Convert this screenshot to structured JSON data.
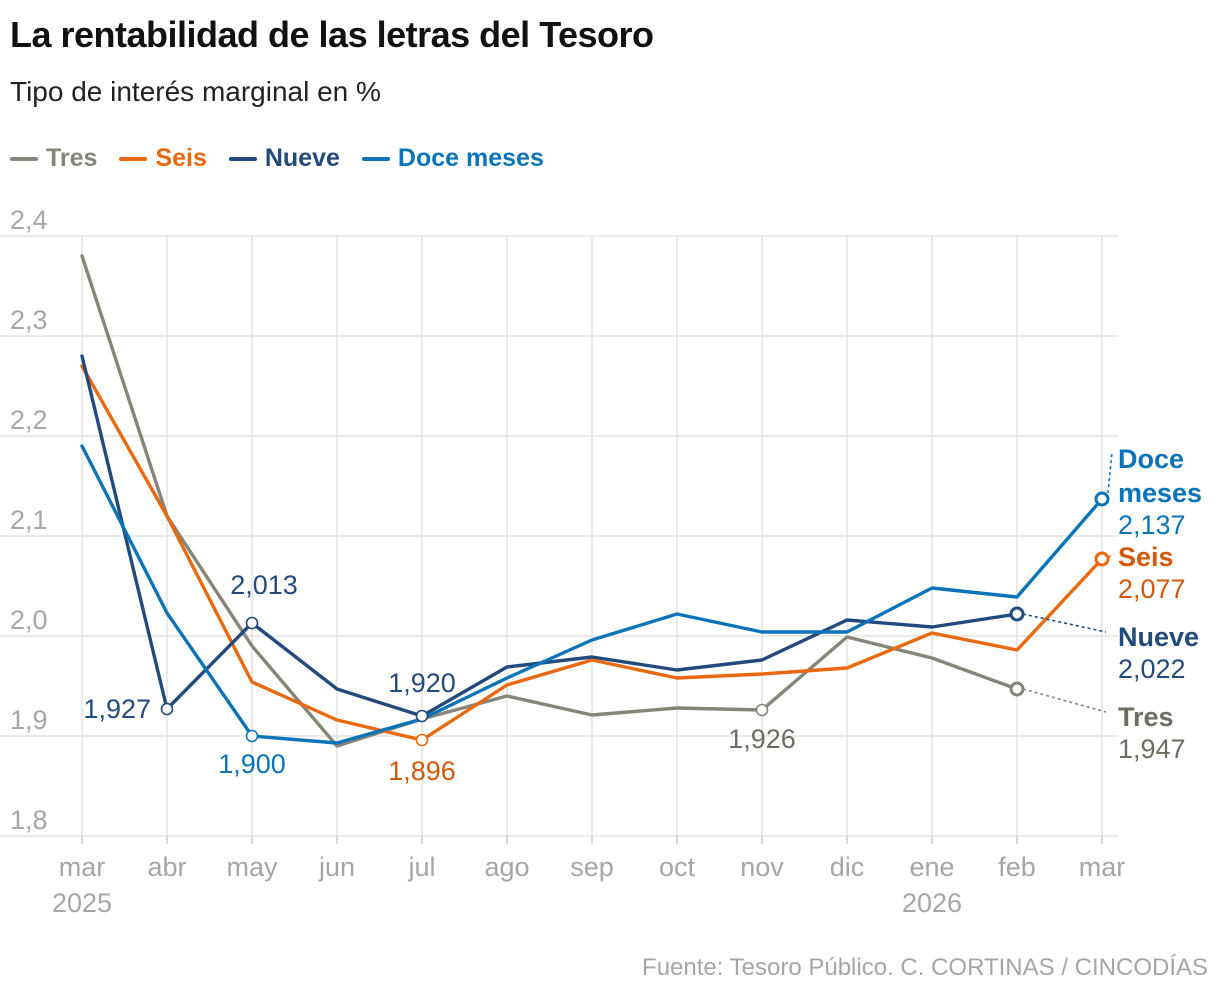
{
  "header": {
    "title": "La rentabilidad de las letras del Tesoro",
    "subtitle": "Tipo de interés marginal en %"
  },
  "footer": {
    "source": "Fuente: Tesoro Público. C. CORTINAS / CINCODÍAS"
  },
  "chart_data": {
    "type": "line",
    "categories": [
      "mar",
      "abr",
      "may",
      "jun",
      "jul",
      "ago",
      "sep",
      "oct",
      "nov",
      "dic",
      "ene",
      "feb",
      "mar"
    ],
    "year_labels": [
      {
        "index": 0,
        "label": "2025"
      },
      {
        "index": 10,
        "label": "2026"
      }
    ],
    "ylim": [
      1.8,
      2.4
    ],
    "yticks": [
      {
        "value": 1.8,
        "label": "1,8"
      },
      {
        "value": 1.9,
        "label": "1,9"
      },
      {
        "value": 2.0,
        "label": "2,0"
      },
      {
        "value": 2.1,
        "label": "2,1"
      },
      {
        "value": 2.2,
        "label": "2,2"
      },
      {
        "value": 2.3,
        "label": "2,3"
      },
      {
        "value": 2.4,
        "label": "2,4"
      }
    ],
    "grid": true,
    "legend": "top-left",
    "series": [
      {
        "name": "Tres",
        "color": "#86857a",
        "labelColor": "#6e6d63",
        "values": [
          2.38,
          2.12,
          1.99,
          1.89,
          1.917,
          1.94,
          1.921,
          1.928,
          1.926,
          1.999,
          1.978,
          1.947,
          null
        ],
        "annotations": [
          {
            "index": 8,
            "label": "1,926"
          },
          {
            "index": 11,
            "label": "1,947"
          }
        ]
      },
      {
        "name": "Seis",
        "color": "#e8690f",
        "labelColor": "#d2580a",
        "values": [
          2.27,
          2.12,
          1.954,
          1.916,
          1.896,
          1.951,
          1.976,
          1.958,
          1.962,
          1.968,
          2.003,
          1.986,
          2.077
        ],
        "annotations": [
          {
            "index": 4,
            "label": "1,896"
          },
          {
            "index": 12,
            "label": "2,077"
          }
        ]
      },
      {
        "name": "Nueve",
        "color": "#234a7c",
        "labelColor": "#234a7c",
        "values": [
          2.28,
          1.927,
          2.013,
          1.947,
          1.92,
          1.969,
          1.979,
          1.966,
          1.976,
          2.016,
          2.009,
          2.022,
          null
        ],
        "annotations": [
          {
            "index": 1,
            "label": "1,927"
          },
          {
            "index": 4,
            "label": "1,920"
          },
          {
            "index": 2,
            "label": "2,013"
          },
          {
            "index": 11,
            "label": "2,022"
          }
        ]
      },
      {
        "name": "Doce meses",
        "color": "#0b74b8",
        "labelColor": "#0b74b8",
        "values": [
          2.19,
          2.023,
          1.9,
          1.893,
          1.917,
          1.958,
          1.996,
          2.022,
          2.004,
          2.004,
          2.048,
          2.039,
          2.137
        ],
        "annotations": [
          {
            "index": 2,
            "label": "1,900"
          },
          {
            "index": 12,
            "label": "2,137"
          }
        ]
      }
    ],
    "end_labels": [
      {
        "series": 3,
        "lines": [
          "Doce",
          "meses"
        ],
        "value": "2,137"
      },
      {
        "series": 1,
        "lines": [
          "Seis"
        ],
        "value": "2,077"
      },
      {
        "series": 2,
        "lines": [
          "Nueve"
        ],
        "value": "2,022"
      },
      {
        "series": 0,
        "lines": [
          "Tres"
        ],
        "value": "1,947"
      }
    ]
  }
}
